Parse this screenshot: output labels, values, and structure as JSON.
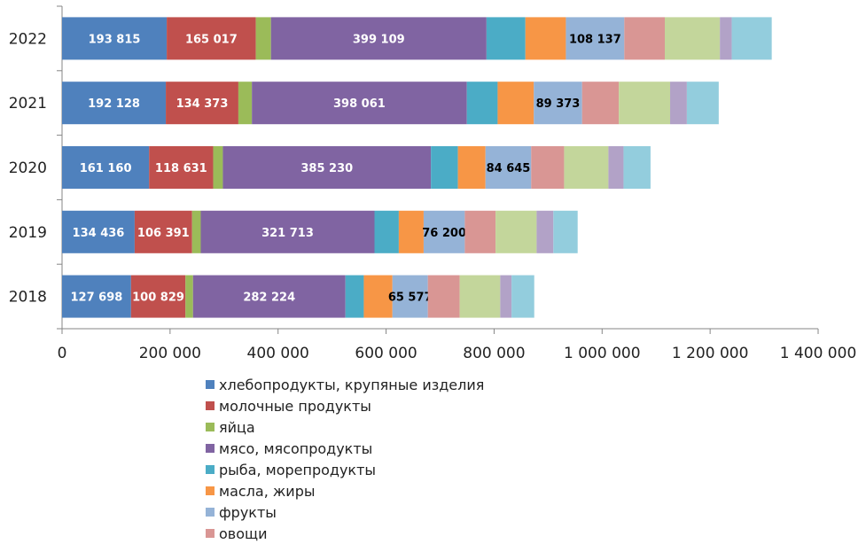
{
  "chart_data": {
    "type": "bar",
    "orientation": "horizontal",
    "stacked": true,
    "categories": [
      "2022",
      "2021",
      "2020",
      "2019",
      "2018"
    ],
    "xlim": [
      0,
      1400000
    ],
    "x_ticks": [
      0,
      200000,
      400000,
      600000,
      800000,
      1000000,
      1200000,
      1400000
    ],
    "x_tick_labels": [
      "0",
      "200 000",
      "400 000",
      "600 000",
      "800 000",
      "1 000 000",
      "1 200 000",
      "1 400 000"
    ],
    "grid": false,
    "legend_position": "bottom",
    "series": [
      {
        "name": "хлебопродукты, крупяные изделия",
        "color": "#4F81BD",
        "values": [
          193815,
          192128,
          161160,
          134436,
          127698
        ],
        "labels": [
          "193 815",
          "192 128",
          "161 160",
          "134 436",
          "127 698"
        ],
        "label_color": "#ffffff"
      },
      {
        "name": "молочные продукты",
        "color": "#C0504D",
        "values": [
          165017,
          134373,
          118631,
          106391,
          100829
        ],
        "labels": [
          "165 017",
          "134 373",
          "118 631",
          "106 391",
          "100 829"
        ],
        "label_color": "#ffffff"
      },
      {
        "name": "яйца",
        "color": "#9BBB59",
        "values": [
          28000,
          25000,
          18000,
          16000,
          14000
        ]
      },
      {
        "name": "мясо, мясопродукты",
        "color": "#8064A2",
        "values": [
          399109,
          398061,
          385230,
          321713,
          282224
        ],
        "labels": [
          "399 109",
          "398 061",
          "385 230",
          "321 713",
          "282 224"
        ],
        "label_color": "#ffffff"
      },
      {
        "name": "рыба, морепродукты",
        "color": "#4BACC6",
        "values": [
          72000,
          57000,
          50000,
          45000,
          34000
        ]
      },
      {
        "name": "масла, жиры",
        "color": "#F79646",
        "values": [
          75000,
          67000,
          51000,
          46000,
          53000
        ]
      },
      {
        "name": "фрукты",
        "color": "#95B3D7",
        "values": [
          108137,
          89373,
          84645,
          76200,
          65577
        ],
        "labels": [
          "108 137",
          "89 373",
          "84 645",
          "76 200",
          "65 577"
        ],
        "label_color": "#000000"
      },
      {
        "name": "овощи",
        "color": "#D99694",
        "values": [
          75000,
          68000,
          61000,
          57000,
          59000
        ]
      },
      {
        "name": "",
        "color": "#C3D69B",
        "values": [
          102000,
          95000,
          82000,
          76000,
          75000
        ]
      },
      {
        "name": "",
        "color": "#B2A2C7",
        "values": [
          22000,
          31000,
          28000,
          31000,
          21000
        ]
      },
      {
        "name": "",
        "color": "#93CDDD",
        "values": [
          74000,
          59000,
          50000,
          45000,
          42000
        ]
      }
    ]
  }
}
